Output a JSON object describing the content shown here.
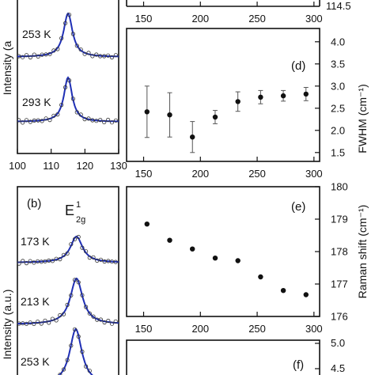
{
  "chart_data": [
    {
      "panel": "a-partial",
      "type": "line",
      "ylabel_partial": "Intensity (a",
      "xticks": [
        "100",
        "110",
        "120",
        "130"
      ],
      "curves": [
        {
          "label": "253 K",
          "peak_x": 115,
          "width": 1.6,
          "amp": 1.0
        },
        {
          "label": "293 K",
          "peak_x": 115,
          "width": 1.5,
          "amp": 1.0
        }
      ],
      "xlim": [
        100,
        130
      ],
      "colors": {
        "fit": "#1f2fb5",
        "points": "#333333"
      }
    },
    {
      "panel": "top-partial",
      "type": "scatter",
      "xticks": [
        "150",
        "200",
        "250",
        "300"
      ],
      "yticks_right": [
        "114.5"
      ]
    },
    {
      "panel": "d",
      "type": "scatter",
      "label": "(d)",
      "ylabel": "FWHM (cm⁻¹)",
      "xlim": [
        135,
        305
      ],
      "ylim": [
        1.3,
        4.3
      ],
      "xticks": [
        "150",
        "200",
        "250",
        "300"
      ],
      "yticks": [
        "1.5",
        "2.0",
        "2.5",
        "3.0",
        "3.5",
        "4.0"
      ],
      "x": [
        153,
        173,
        193,
        213,
        233,
        253,
        273,
        293
      ],
      "y": [
        2.42,
        2.35,
        1.85,
        2.3,
        2.65,
        2.75,
        2.78,
        2.82
      ],
      "err": [
        0.58,
        0.5,
        0.35,
        0.15,
        0.22,
        0.15,
        0.12,
        0.15
      ]
    },
    {
      "panel": "b",
      "type": "line",
      "label": "(b)",
      "mode": "E",
      "mode_sub": "2g",
      "mode_sup": "1",
      "ylabel": "Intensity (a.u.)",
      "curves": [
        {
          "label": "173 K",
          "amp": 0.75
        },
        {
          "label": "213 K",
          "amp": 1.0
        },
        {
          "label": "253 K",
          "amp": 1.0
        }
      ]
    },
    {
      "panel": "e",
      "type": "scatter",
      "label": "(e)",
      "ylabel": "Raman shift (cm⁻¹)",
      "xlim": [
        135,
        305
      ],
      "ylim": [
        176,
        180
      ],
      "xticks": [
        "150",
        "200",
        "250",
        "300"
      ],
      "yticks": [
        "176",
        "177",
        "178",
        "179",
        "180"
      ],
      "x": [
        153,
        173,
        193,
        213,
        233,
        253,
        273,
        293
      ],
      "y": [
        178.85,
        178.35,
        178.08,
        177.8,
        177.72,
        177.22,
        176.8,
        176.67
      ]
    },
    {
      "panel": "f-partial",
      "type": "scatter",
      "label": "(f)",
      "yticks": [
        "5.0",
        "4.5"
      ]
    }
  ]
}
